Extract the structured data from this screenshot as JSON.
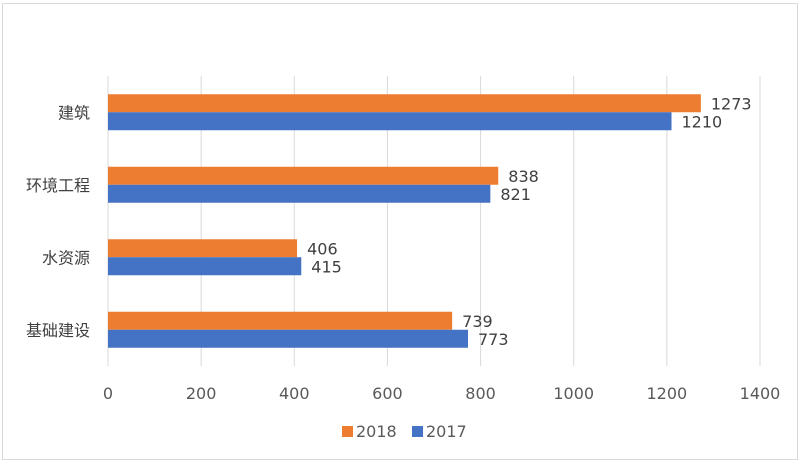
{
  "chart_data": {
    "type": "bar",
    "orientation": "horizontal",
    "categories": [
      "建筑",
      "环境工程",
      "水资源",
      "基础建设"
    ],
    "series": [
      {
        "name": "2018",
        "color": "#ED7D31",
        "values": [
          1273,
          838,
          406,
          739
        ]
      },
      {
        "name": "2017",
        "color": "#4472C4",
        "values": [
          1210,
          821,
          415,
          773
        ]
      }
    ],
    "xlim": [
      0,
      1400
    ],
    "xticks": [
      0,
      200,
      400,
      600,
      800,
      1000,
      1200,
      1400
    ],
    "grid": true,
    "legend": "bottom",
    "title": "",
    "xlabel": "",
    "ylabel": ""
  }
}
